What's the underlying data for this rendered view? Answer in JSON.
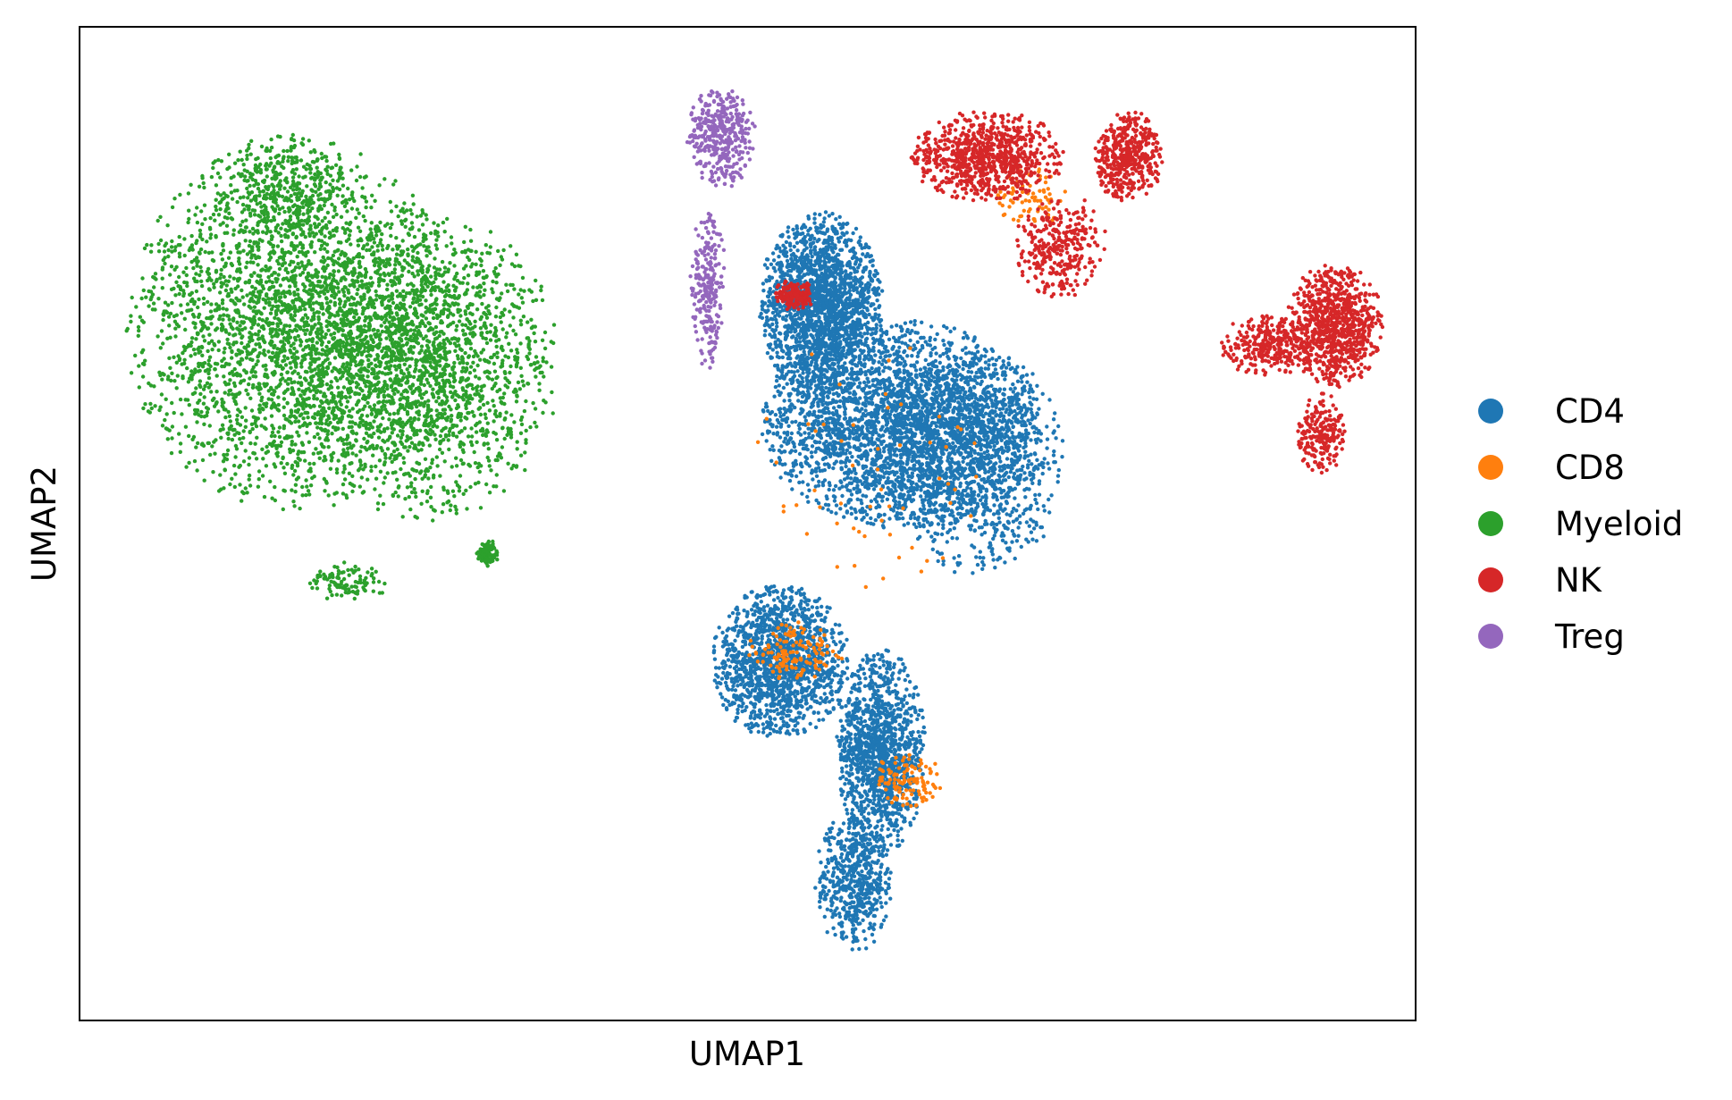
{
  "chart_data": {
    "type": "scatter",
    "title": "",
    "xlabel": "UMAP1",
    "ylabel": "UMAP2",
    "grid": false,
    "xticks": [],
    "yticks": [],
    "xlim": [
      0,
      100
    ],
    "ylim": [
      0,
      100
    ],
    "legend": {
      "position": "right-outside",
      "entries": [
        {
          "label": "CD4",
          "color": "#1f77b4"
        },
        {
          "label": "CD8",
          "color": "#ff7f0e"
        },
        {
          "label": "Myeloid",
          "color": "#2ca02c"
        },
        {
          "label": "NK",
          "color": "#d62728"
        },
        {
          "label": "Treg",
          "color": "#9467bd"
        }
      ]
    },
    "clusters": [
      {
        "label": "Myeloid",
        "color": "#2ca02c",
        "n": 5200,
        "blobs": [
          {
            "cx": 16.0,
            "cy": 70.0,
            "rx": 12.0,
            "ry": 18.0,
            "w": 0.55
          },
          {
            "cx": 26.0,
            "cy": 66.0,
            "rx": 9.5,
            "ry": 15.0,
            "w": 0.35
          },
          {
            "cx": 15.0,
            "cy": 83.0,
            "rx": 5.0,
            "ry": 6.0,
            "w": 0.06
          },
          {
            "cx": 30.5,
            "cy": 47.0,
            "rx": 0.8,
            "ry": 1.3,
            "w": 0.02
          },
          {
            "cx": 20.0,
            "cy": 44.0,
            "rx": 3.0,
            "ry": 2.0,
            "w": 0.02
          }
        ]
      },
      {
        "label": "CD4",
        "color": "#1f77b4",
        "n": 9000,
        "blobs": [
          {
            "cx": 55.5,
            "cy": 72.0,
            "rx": 4.5,
            "ry": 9.0,
            "w": 0.22
          },
          {
            "cx": 61.5,
            "cy": 60.0,
            "rx": 10.0,
            "ry": 10.0,
            "w": 0.32
          },
          {
            "cx": 52.5,
            "cy": 36.0,
            "rx": 5.0,
            "ry": 7.5,
            "w": 0.16
          },
          {
            "cx": 60.0,
            "cy": 27.0,
            "rx": 3.2,
            "ry": 10.0,
            "w": 0.14
          },
          {
            "cx": 67.5,
            "cy": 56.0,
            "rx": 6.0,
            "ry": 11.0,
            "w": 0.1
          },
          {
            "cx": 58.0,
            "cy": 14.0,
            "rx": 2.8,
            "ry": 7.0,
            "w": 0.06
          }
        ]
      },
      {
        "label": "CD8",
        "color": "#ff7f0e",
        "n": 380,
        "blobs": [
          {
            "cx": 53.5,
            "cy": 37.0,
            "rx": 3.5,
            "ry": 3.0,
            "w": 0.35
          },
          {
            "cx": 62.0,
            "cy": 24.0,
            "rx": 2.5,
            "ry": 3.0,
            "w": 0.3
          },
          {
            "cx": 71.5,
            "cy": 83.0,
            "rx": 3.0,
            "ry": 3.0,
            "w": 0.2
          },
          {
            "cx": 60.0,
            "cy": 55.0,
            "rx": 9.0,
            "ry": 15.0,
            "w": 0.15
          }
        ]
      },
      {
        "label": "NK",
        "color": "#d62728",
        "n": 3100,
        "blobs": [
          {
            "cx": 68.0,
            "cy": 87.0,
            "rx": 5.5,
            "ry": 4.5,
            "w": 0.27
          },
          {
            "cx": 73.5,
            "cy": 78.0,
            "rx": 3.5,
            "ry": 5.0,
            "w": 0.1
          },
          {
            "cx": 78.5,
            "cy": 87.0,
            "rx": 2.5,
            "ry": 4.5,
            "w": 0.14
          },
          {
            "cx": 94.0,
            "cy": 70.0,
            "rx": 3.5,
            "ry": 6.0,
            "w": 0.27
          },
          {
            "cx": 89.0,
            "cy": 68.0,
            "rx": 3.5,
            "ry": 3.0,
            "w": 0.1
          },
          {
            "cx": 93.0,
            "cy": 59.0,
            "rx": 1.8,
            "ry": 4.0,
            "w": 0.07
          },
          {
            "cx": 53.5,
            "cy": 73.0,
            "rx": 1.5,
            "ry": 1.5,
            "w": 0.05
          }
        ]
      },
      {
        "label": "Treg",
        "color": "#9467bd",
        "n": 620,
        "blobs": [
          {
            "cx": 48.0,
            "cy": 89.0,
            "rx": 2.5,
            "ry": 5.0,
            "w": 0.62
          },
          {
            "cx": 47.0,
            "cy": 74.0,
            "rx": 1.3,
            "ry": 8.0,
            "w": 0.38
          }
        ]
      }
    ]
  }
}
